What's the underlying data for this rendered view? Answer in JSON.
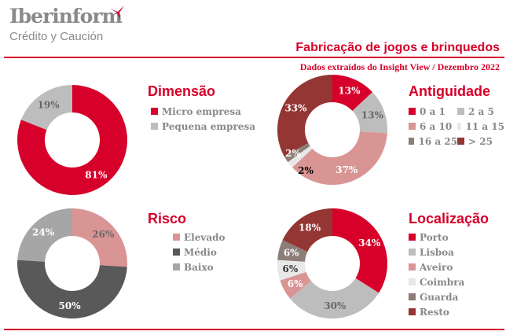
{
  "header": {
    "logo_main": "Iberinform",
    "logo_sub": "Crédito y Caución",
    "title": "Fabricação de jogos e brinquedos",
    "subtitle": "Dados extraídos do Insight View / Dezembro 2022",
    "accent": "#d7002a"
  },
  "chart_data": [
    {
      "type": "pie",
      "title": "Dimensão",
      "categories": [
        "Micro empresa",
        "Pequena empresa"
      ],
      "values": [
        81,
        19
      ],
      "colors": [
        "#d7002a",
        "#bdbdbd"
      ],
      "label_colors": [
        "#fff",
        "#666"
      ],
      "unit": "%"
    },
    {
      "type": "pie",
      "title": "Antiguidade",
      "categories": [
        "0 a 1",
        "2 a 5",
        "6 a 10",
        "11 a 15",
        "16 a 25",
        "> 25"
      ],
      "values": [
        13,
        13,
        37,
        2,
        2,
        33
      ],
      "colors": [
        "#d7002a",
        "#bdbdbd",
        "#d99594",
        "#e8e8e8",
        "#8c7d78",
        "#943634"
      ],
      "label_colors": [
        "#fff",
        "#666",
        "#fff",
        "#000",
        "#fff",
        "#fff"
      ],
      "unit": "%"
    },
    {
      "type": "pie",
      "title": "Risco",
      "categories": [
        "Elevado",
        "Médio",
        "Baixo"
      ],
      "values": [
        26,
        50,
        24
      ],
      "colors": [
        "#d99594",
        "#595959",
        "#a6a6a6"
      ],
      "label_colors": [
        "#666",
        "#fff",
        "#fff"
      ],
      "unit": "%"
    },
    {
      "type": "pie",
      "title": "Localização",
      "categories": [
        "Porto",
        "Lisboa",
        "Aveiro",
        "Coimbra",
        "Guarda",
        "Resto"
      ],
      "values": [
        34,
        30,
        6,
        6,
        6,
        18
      ],
      "colors": [
        "#d7002a",
        "#bdbdbd",
        "#d99594",
        "#e8e8e8",
        "#8c7d78",
        "#943634"
      ],
      "label_colors": [
        "#fff",
        "#666",
        "#fff",
        "#333",
        "#fff",
        "#fff"
      ],
      "unit": "%"
    }
  ]
}
